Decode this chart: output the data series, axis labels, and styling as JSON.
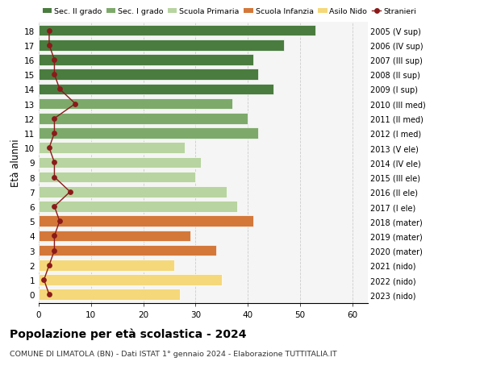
{
  "ages": [
    18,
    17,
    16,
    15,
    14,
    13,
    12,
    11,
    10,
    9,
    8,
    7,
    6,
    5,
    4,
    3,
    2,
    1,
    0
  ],
  "values": [
    53,
    47,
    41,
    42,
    45,
    37,
    40,
    42,
    28,
    31,
    30,
    36,
    38,
    41,
    29,
    34,
    26,
    35,
    27
  ],
  "stranieri": [
    2,
    2,
    3,
    3,
    4,
    7,
    3,
    3,
    2,
    3,
    3,
    6,
    3,
    4,
    3,
    3,
    2,
    1,
    2
  ],
  "right_labels": [
    "2005 (V sup)",
    "2006 (IV sup)",
    "2007 (III sup)",
    "2008 (II sup)",
    "2009 (I sup)",
    "2010 (III med)",
    "2011 (II med)",
    "2012 (I med)",
    "2013 (V ele)",
    "2014 (IV ele)",
    "2015 (III ele)",
    "2016 (II ele)",
    "2017 (I ele)",
    "2018 (mater)",
    "2019 (mater)",
    "2020 (mater)",
    "2021 (nido)",
    "2022 (nido)",
    "2023 (nido)"
  ],
  "bar_colors": [
    "#4a7c3f",
    "#4a7c3f",
    "#4a7c3f",
    "#4a7c3f",
    "#4a7c3f",
    "#7daa6b",
    "#7daa6b",
    "#7daa6b",
    "#b8d4a0",
    "#b8d4a0",
    "#b8d4a0",
    "#b8d4a0",
    "#b8d4a0",
    "#d4783a",
    "#d4783a",
    "#d4783a",
    "#f5d87a",
    "#f5d87a",
    "#f5d87a"
  ],
  "title": "Popolazione per età scolastica - 2024",
  "subtitle": "COMUNE DI LIMATOLA (BN) - Dati ISTAT 1° gennaio 2024 - Elaborazione TUTTITALIA.IT",
  "ylabel_left": "Età alunni",
  "xlim": [
    0,
    63
  ],
  "stranieri_color": "#8b1a1a",
  "legend_labels": [
    "Sec. II grado",
    "Sec. I grado",
    "Scuola Primaria",
    "Scuola Infanzia",
    "Asilo Nido",
    "Stranieri"
  ],
  "legend_colors": [
    "#4a7c3f",
    "#7daa6b",
    "#b8d4a0",
    "#d4783a",
    "#f5d87a",
    "#8b1a1a"
  ]
}
